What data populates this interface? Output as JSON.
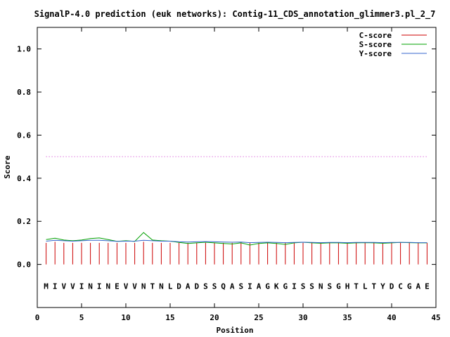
{
  "chart_data": {
    "type": "line",
    "title": "SignalP-4.0 prediction (euk networks): Contig-11_CDS_annotation_glimmer3.pl_2_7",
    "xlabel": "Position",
    "ylabel": "Score",
    "xlim": [
      0,
      45
    ],
    "ylim": [
      -0.2,
      1.1
    ],
    "x_ticks": [
      0,
      5,
      10,
      15,
      20,
      25,
      30,
      35,
      40,
      45
    ],
    "y_ticks": [
      0.0,
      0.2,
      0.4,
      0.6,
      0.8,
      1.0
    ],
    "x_tick_labels": [
      "0",
      "5",
      "10",
      "15",
      "20",
      "25",
      "30",
      "35",
      "40",
      "45"
    ],
    "y_tick_labels": [
      "0.0",
      "0.2",
      "0.4",
      "0.6",
      "0.8",
      "1.0"
    ],
    "legend_position": "top-right",
    "threshold": {
      "value": 0.5,
      "color": "#cc33cc",
      "style": "dotted"
    },
    "sequence": [
      "M",
      "I",
      "V",
      "V",
      "I",
      "N",
      "I",
      "N",
      "E",
      "V",
      "V",
      "N",
      "T",
      "N",
      "L",
      "D",
      "A",
      "D",
      "S",
      "S",
      "Q",
      "A",
      "S",
      "I",
      "A",
      "G",
      "K",
      "G",
      "I",
      "S",
      "S",
      "N",
      "S",
      "G",
      "H",
      "T",
      "L",
      "T",
      "Y",
      "D",
      "C",
      "G",
      "A",
      "E"
    ],
    "positions": [
      1,
      2,
      3,
      4,
      5,
      6,
      7,
      8,
      9,
      10,
      11,
      12,
      13,
      14,
      15,
      16,
      17,
      18,
      19,
      20,
      21,
      22,
      23,
      24,
      25,
      26,
      27,
      28,
      29,
      30,
      31,
      32,
      33,
      34,
      35,
      36,
      37,
      38,
      39,
      40,
      41,
      42,
      43,
      44
    ],
    "series": [
      {
        "name": "C-score",
        "color": "#cc0000",
        "render": "impulse",
        "values": [
          0.1,
          0.105,
          0.1,
          0.1,
          0.1,
          0.1,
          0.1,
          0.1,
          0.1,
          0.1,
          0.1,
          0.105,
          0.1,
          0.1,
          0.1,
          0.1,
          0.1,
          0.1,
          0.1,
          0.1,
          0.1,
          0.1,
          0.1,
          0.1,
          0.1,
          0.1,
          0.1,
          0.1,
          0.1,
          0.1,
          0.1,
          0.1,
          0.1,
          0.1,
          0.1,
          0.1,
          0.1,
          0.1,
          0.1,
          0.1,
          0.1,
          0.1,
          0.1,
          0.1
        ]
      },
      {
        "name": "S-score",
        "color": "#00a000",
        "render": "line",
        "values": [
          0.115,
          0.122,
          0.113,
          0.11,
          0.113,
          0.12,
          0.123,
          0.115,
          0.107,
          0.11,
          0.107,
          0.148,
          0.113,
          0.11,
          0.108,
          0.102,
          0.097,
          0.1,
          0.103,
          0.1,
          0.097,
          0.095,
          0.1,
          0.09,
          0.097,
          0.1,
          0.097,
          0.093,
          0.1,
          0.103,
          0.1,
          0.098,
          0.1,
          0.1,
          0.098,
          0.1,
          0.101,
          0.1,
          0.098,
          0.1,
          0.102,
          0.101,
          0.1,
          0.1
        ]
      },
      {
        "name": "Y-score",
        "color": "#3366cc",
        "render": "line",
        "values": [
          0.108,
          0.112,
          0.11,
          0.108,
          0.11,
          0.112,
          0.112,
          0.11,
          0.107,
          0.108,
          0.108,
          0.112,
          0.11,
          0.108,
          0.108,
          0.105,
          0.104,
          0.105,
          0.106,
          0.105,
          0.104,
          0.103,
          0.104,
          0.101,
          0.102,
          0.103,
          0.102,
          0.101,
          0.102,
          0.103,
          0.102,
          0.101,
          0.102,
          0.102,
          0.101,
          0.102,
          0.102,
          0.102,
          0.101,
          0.102,
          0.102,
          0.102,
          0.101,
          0.101
        ]
      }
    ]
  }
}
